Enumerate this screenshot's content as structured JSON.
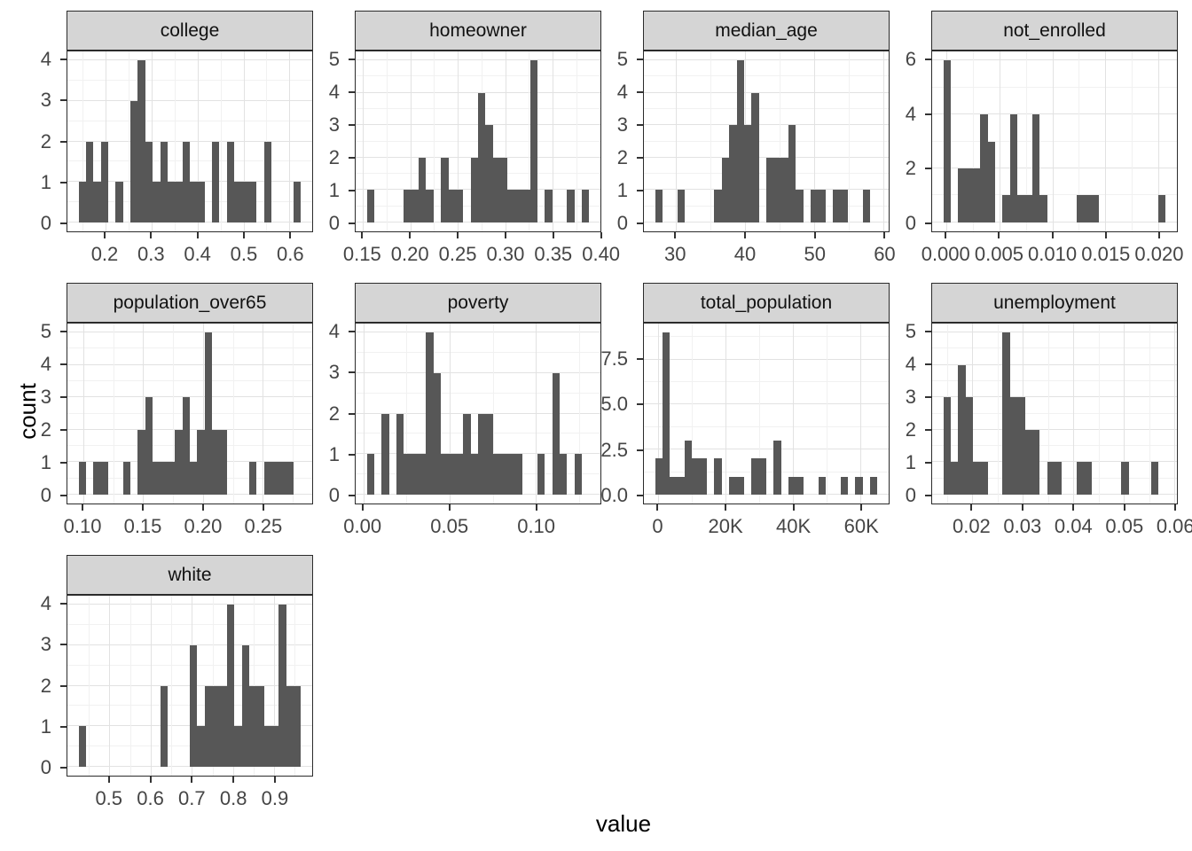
{
  "figure": {
    "x_axis_title": "value",
    "y_axis_title": "count"
  },
  "style": {
    "bar_color": "#575757",
    "strip_background": "#d5d5d5",
    "panel_border": "#2b2b2b",
    "grid_major": "#e2e2e2",
    "grid_minor": "#f1f1f1",
    "axis_text_color": "#454545",
    "tick_mark_color": "#333333"
  },
  "chart_data": [
    {
      "type": "histogram",
      "facet": "college",
      "bin_start": 0.142,
      "bin_width": 0.0161,
      "counts": [
        1,
        2,
        1,
        2,
        0,
        1,
        0,
        3,
        4,
        2,
        1,
        2,
        1,
        1,
        2,
        1,
        1,
        0,
        2,
        0,
        2,
        1,
        1,
        1,
        0,
        2,
        0,
        0,
        0,
        1
      ],
      "yticks": {
        "values": [
          0,
          1,
          2,
          3,
          4
        ],
        "labels": [
          "0",
          "1",
          "2",
          "3",
          "4"
        ]
      },
      "xticks": {
        "values": [
          0.2,
          0.3,
          0.4,
          0.5,
          0.6
        ],
        "labels": [
          "0.2",
          "0.3",
          "0.4",
          "0.5",
          "0.6"
        ]
      }
    },
    {
      "type": "histogram",
      "facet": "homeowner",
      "bin_start": 0.154,
      "bin_width": 0.00782,
      "counts": [
        1,
        0,
        0,
        0,
        0,
        1,
        1,
        2,
        1,
        0,
        2,
        1,
        1,
        0,
        2,
        4,
        3,
        2,
        2,
        1,
        1,
        1,
        5,
        0,
        1,
        0,
        0,
        1,
        0,
        1
      ],
      "yticks": {
        "values": [
          0,
          1,
          2,
          3,
          4,
          5
        ],
        "labels": [
          "0",
          "1",
          "2",
          "3",
          "4",
          "5"
        ]
      },
      "xticks": {
        "values": [
          0.15,
          0.2,
          0.25,
          0.3,
          0.35,
          0.4
        ],
        "labels": [
          "0.15",
          "0.20",
          "0.25",
          "0.30",
          "0.35",
          "0.40"
        ]
      }
    },
    {
      "type": "histogram",
      "facet": "median_age",
      "bin_start": 27.0,
      "bin_width": 1.07,
      "counts": [
        1,
        0,
        0,
        1,
        0,
        0,
        0,
        0,
        1,
        2,
        3,
        5,
        3,
        4,
        0,
        2,
        2,
        2,
        3,
        1,
        0,
        1,
        1,
        0,
        1,
        1,
        0,
        0,
        1,
        0
      ],
      "yticks": {
        "values": [
          0,
          1,
          2,
          3,
          4,
          5
        ],
        "labels": [
          "0",
          "1",
          "2",
          "3",
          "4",
          "5"
        ]
      },
      "xticks": {
        "values": [
          30,
          40,
          50,
          60
        ],
        "labels": [
          "30",
          "40",
          "50",
          "60"
        ]
      }
    },
    {
      "type": "histogram",
      "facet": "not_enrolled",
      "bin_start": -0.0003,
      "bin_width": 0.0007,
      "counts": [
        6,
        0,
        2,
        2,
        2,
        4,
        3,
        0,
        1,
        4,
        1,
        1,
        4,
        1,
        0,
        0,
        0,
        0,
        1,
        1,
        1,
        0,
        0,
        0,
        0,
        0,
        0,
        0,
        0,
        1
      ],
      "yticks": {
        "values": [
          0,
          2,
          4,
          6
        ],
        "labels": [
          "0",
          "2",
          "4",
          "6"
        ]
      },
      "xticks": {
        "values": [
          0,
          0.005,
          0.01,
          0.015,
          0.02
        ],
        "labels": [
          "0.000",
          "0.005",
          "0.010",
          "0.015",
          "0.020"
        ]
      }
    },
    {
      "type": "histogram",
      "facet": "population_over65",
      "bin_start": 0.096,
      "bin_width": 0.0062,
      "counts": [
        1,
        0,
        1,
        1,
        0,
        0,
        1,
        0,
        2,
        3,
        1,
        1,
        1,
        2,
        3,
        1,
        2,
        5,
        2,
        2,
        0,
        0,
        0,
        1,
        0,
        1,
        1,
        1,
        1,
        0
      ],
      "yticks": {
        "values": [
          0,
          1,
          2,
          3,
          4,
          5
        ],
        "labels": [
          "0",
          "1",
          "2",
          "3",
          "4",
          "5"
        ]
      },
      "xticks": {
        "values": [
          0.1,
          0.15,
          0.2,
          0.25
        ],
        "labels": [
          "0.10",
          "0.15",
          "0.20",
          "0.25"
        ]
      }
    },
    {
      "type": "histogram",
      "facet": "poverty",
      "bin_start": 0.002,
      "bin_width": 0.0043,
      "counts": [
        1,
        0,
        2,
        0,
        2,
        1,
        1,
        1,
        4,
        3,
        1,
        1,
        1,
        2,
        1,
        2,
        2,
        1,
        1,
        1,
        1,
        0,
        0,
        1,
        0,
        3,
        1,
        0,
        1,
        0
      ],
      "yticks": {
        "values": [
          0,
          1,
          2,
          3,
          4
        ],
        "labels": [
          "0",
          "1",
          "2",
          "3",
          "4"
        ]
      },
      "xticks": {
        "values": [
          0.0,
          0.05,
          0.1
        ],
        "labels": [
          "0.00",
          "0.05",
          "0.10"
        ]
      }
    },
    {
      "type": "histogram",
      "facet": "total_population",
      "bin_start": -1000,
      "bin_width": 2200,
      "counts": [
        2,
        9,
        1,
        1,
        3,
        2,
        2,
        0,
        2,
        0,
        1,
        1,
        0,
        2,
        2,
        0,
        3,
        0,
        1,
        1,
        0,
        0,
        1,
        0,
        0,
        1,
        0,
        1,
        0,
        1
      ],
      "yticks": {
        "values": [
          0,
          2.5,
          5,
          7.5
        ],
        "labels": [
          "0.0",
          "2.5",
          "5.0",
          "7.5"
        ]
      },
      "xticks": {
        "values": [
          0,
          20000,
          40000,
          60000
        ],
        "labels": [
          "0",
          "20K",
          "40K",
          "60K"
        ]
      }
    },
    {
      "type": "histogram",
      "facet": "unemployment",
      "bin_start": 0.0143,
      "bin_width": 0.001466,
      "counts": [
        3,
        1,
        4,
        3,
        1,
        1,
        0,
        0,
        5,
        3,
        3,
        2,
        2,
        0,
        1,
        1,
        0,
        0,
        1,
        1,
        0,
        0,
        0,
        0,
        1,
        0,
        0,
        0,
        1,
        0
      ],
      "yticks": {
        "values": [
          0,
          1,
          2,
          3,
          4,
          5
        ],
        "labels": [
          "0",
          "1",
          "2",
          "3",
          "4",
          "5"
        ]
      },
      "xticks": {
        "values": [
          0.02,
          0.03,
          0.04,
          0.05,
          0.06
        ],
        "labels": [
          "0.02",
          "0.03",
          "0.04",
          "0.05",
          "0.06"
        ]
      }
    },
    {
      "type": "histogram",
      "facet": "white",
      "bin_start": 0.425,
      "bin_width": 0.018,
      "counts": [
        1,
        0,
        0,
        0,
        0,
        0,
        0,
        0,
        0,
        0,
        0,
        2,
        0,
        0,
        0,
        3,
        1,
        2,
        2,
        2,
        4,
        1,
        3,
        2,
        2,
        1,
        1,
        4,
        2,
        2
      ],
      "yticks": {
        "values": [
          0,
          1,
          2,
          3,
          4
        ],
        "labels": [
          "0",
          "1",
          "2",
          "3",
          "4"
        ]
      },
      "xticks": {
        "values": [
          0.5,
          0.6,
          0.7,
          0.8,
          0.9
        ],
        "labels": [
          "0.5",
          "0.6",
          "0.7",
          "0.8",
          "0.9"
        ]
      }
    }
  ]
}
